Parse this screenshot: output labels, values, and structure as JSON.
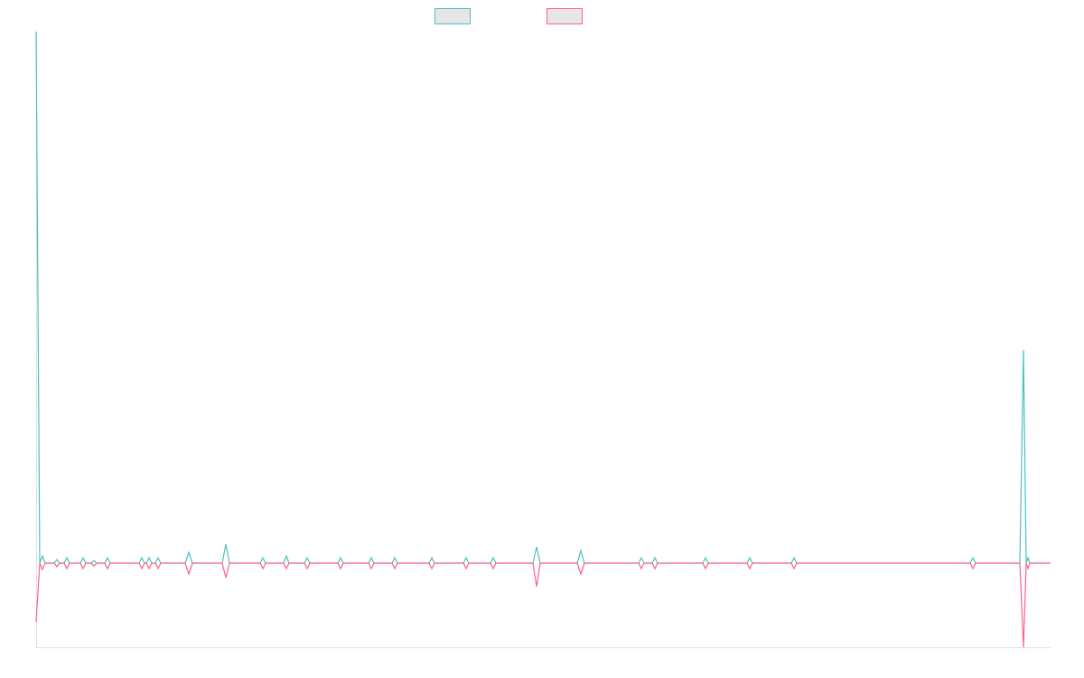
{
  "chart_data": {
    "type": "line",
    "x": [
      0,
      4,
      7,
      10,
      20,
      23,
      26,
      31,
      34,
      37,
      49,
      52,
      55,
      61,
      64,
      67,
      76,
      79,
      82,
      114,
      117,
      120,
      122,
      125,
      128,
      132,
      135,
      138,
      165,
      169,
      173,
      206,
      210,
      214,
      248,
      251,
      254,
      274,
      277,
      280,
      297,
      300,
      303,
      334,
      337,
      340,
      368,
      371,
      374,
      394,
      397,
      400,
      435,
      438,
      441,
      473,
      476,
      479,
      503,
      506,
      509,
      550,
      554,
      558,
      599,
      603,
      607,
      667,
      670,
      673,
      682,
      685,
      688,
      738,
      741,
      744,
      787,
      790,
      793,
      836,
      839,
      842,
      1034,
      1037,
      1040,
      1089,
      1093,
      1096,
      1098,
      1100,
      1123
    ],
    "xlim": [
      0,
      1123
    ],
    "ylim": [
      -93,
      588
    ],
    "series": [
      {
        "color": "#4bc0c0",
        "values": [
          588,
          0,
          8,
          0,
          0,
          4,
          0,
          0,
          6,
          0,
          0,
          6,
          0,
          0,
          3,
          0,
          0,
          6,
          0,
          0,
          6,
          0,
          0,
          6,
          0,
          0,
          6,
          0,
          0,
          12,
          0,
          0,
          21,
          0,
          0,
          6,
          0,
          0,
          8,
          0,
          0,
          6,
          0,
          0,
          6,
          0,
          0,
          6,
          0,
          0,
          6,
          0,
          0,
          6,
          0,
          0,
          6,
          0,
          0,
          6,
          0,
          0,
          18,
          0,
          0,
          14,
          0,
          0,
          6,
          0,
          0,
          6,
          0,
          0,
          6,
          0,
          0,
          6,
          0,
          0,
          6,
          0,
          0,
          6,
          0,
          0,
          236,
          0,
          6,
          0,
          0
        ]
      },
      {
        "color": "#ff6384",
        "values": [
          -65,
          0,
          -7,
          0,
          0,
          -4,
          0,
          0,
          -6,
          0,
          0,
          -6,
          0,
          0,
          -3,
          0,
          0,
          -6,
          0,
          0,
          -6,
          0,
          0,
          -6,
          0,
          0,
          -6,
          0,
          0,
          -12,
          0,
          0,
          -16,
          0,
          0,
          -6,
          0,
          0,
          -6,
          0,
          0,
          -6,
          0,
          0,
          -6,
          0,
          0,
          -6,
          0,
          0,
          -6,
          0,
          0,
          -6,
          0,
          0,
          -6,
          0,
          0,
          -6,
          0,
          0,
          -26,
          0,
          0,
          -12,
          0,
          0,
          -6,
          0,
          0,
          -6,
          0,
          0,
          -6,
          0,
          0,
          -6,
          0,
          0,
          -6,
          0,
          0,
          -6,
          0,
          0,
          -93,
          0,
          -6,
          0,
          0
        ]
      }
    ]
  }
}
